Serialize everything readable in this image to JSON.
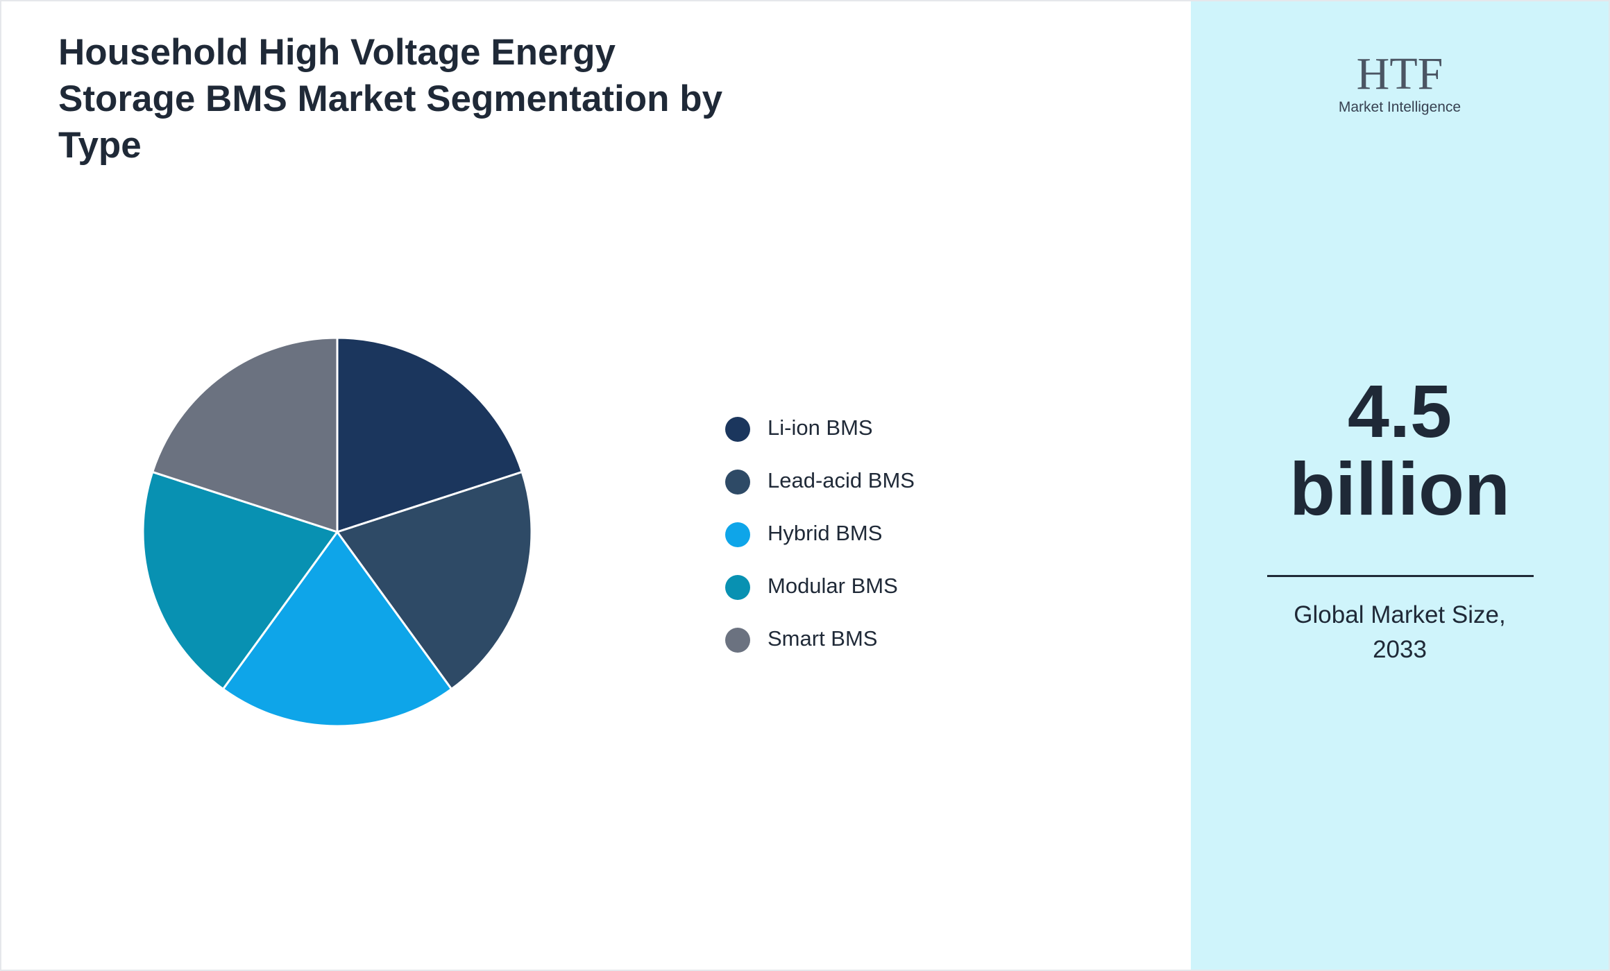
{
  "chart_data": {
    "type": "pie",
    "title": "Household High Voltage Energy Storage BMS Market Segmentation by Type",
    "categories": [
      "Li-ion BMS",
      "Lead-acid BMS",
      "Hybrid BMS",
      "Modular BMS",
      "Smart BMS"
    ],
    "values": [
      20,
      20,
      20,
      20,
      20
    ],
    "colors": [
      "#1b365d",
      "#2e4a66",
      "#0ea5e9",
      "#0891b2",
      "#6b7280"
    ]
  },
  "market_size": {
    "value": "4.5 billion",
    "label": "Global Market Size, 2033"
  },
  "logo": {
    "mark": "HTF",
    "text": "Market Intelligence"
  }
}
